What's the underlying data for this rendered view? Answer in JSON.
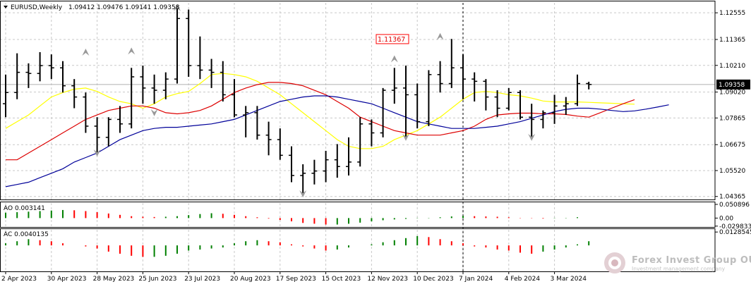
{
  "header": {
    "symbol": "EURUSD,Weekly",
    "ohlc": "1.09412 1.09476 1.09141 1.09358"
  },
  "colors": {
    "background": "#ffffff",
    "bar": "#000000",
    "ma_fast": "#ffff00",
    "ma_mid": "#dd0000",
    "ma_slow": "#000099",
    "osc_up": "#008000",
    "osc_down": "#ff0000",
    "grid": "#c8c8c8",
    "price_marker_bg": "#000000",
    "price_marker_fg": "#ffffff",
    "label_border": "#ff0000",
    "label_text": "#dd0000",
    "arrow": "#999999"
  },
  "watermark": {
    "company": "Forex Invest Group OU",
    "tagline": "Investment management company"
  },
  "chart_data": [
    {
      "type": "bar",
      "name": "price",
      "timeframe": "Weekly",
      "ylim": [
        1.0423,
        1.13
      ],
      "yticks": [
        "1.12555",
        "1.11365",
        "1.10210",
        "1.09020",
        "1.07865",
        "1.06675",
        "1.05520",
        "1.04365"
      ],
      "ytick_values": [
        1.12555,
        1.11365,
        1.1021,
        1.0902,
        1.07865,
        1.06675,
        1.0552,
        1.04365
      ],
      "current_price": "1.09358",
      "current_value": 1.09358,
      "annotation": {
        "text": "1.11367",
        "bar_index": 35,
        "value": 1.11367
      },
      "fractal_arrows": [
        {
          "bar_index": 7,
          "direction": "up",
          "value": 1.108
        },
        {
          "bar_index": 8,
          "direction": "down",
          "value": 1.063
        },
        {
          "bar_index": 11,
          "direction": "up",
          "value": 1.1085
        },
        {
          "bar_index": 13,
          "direction": "down",
          "value": 1.081
        },
        {
          "bar_index": 15,
          "direction": "up",
          "value": 1.1279
        },
        {
          "bar_index": 26,
          "direction": "down",
          "value": 1.0448
        },
        {
          "bar_index": 34,
          "direction": "up",
          "value": 1.105
        },
        {
          "bar_index": 35,
          "direction": "down",
          "value": 1.07
        },
        {
          "bar_index": 38,
          "direction": "up",
          "value": 1.115
        },
        {
          "bar_index": 46,
          "direction": "down",
          "value": 1.07
        }
      ],
      "x_labels": [
        {
          "text": "2 Apr 2023",
          "bar_index": 0
        },
        {
          "text": "30 Apr 2023",
          "bar_index": 4
        },
        {
          "text": "28 May 2023",
          "bar_index": 8
        },
        {
          "text": "25 Jun 2023",
          "bar_index": 12
        },
        {
          "text": "23 Jul 2023",
          "bar_index": 16
        },
        {
          "text": "20 Aug 2023",
          "bar_index": 20
        },
        {
          "text": "17 Sep 2023",
          "bar_index": 24
        },
        {
          "text": "15 Oct 2023",
          "bar_index": 28
        },
        {
          "text": "12 Nov 2023",
          "bar_index": 32
        },
        {
          "text": "10 Dec 2023",
          "bar_index": 36
        },
        {
          "text": "7 Jan 2024",
          "bar_index": 40
        },
        {
          "text": "4 Feb 2024",
          "bar_index": 44
        },
        {
          "text": "3 Mar 2024",
          "bar_index": 48
        }
      ],
      "vertical_marker_bar_index": 40,
      "ohlc": [
        [
          1.085,
          1.098,
          1.079,
          1.09
        ],
        [
          1.09,
          1.1075,
          1.087,
          1.099
        ],
        [
          1.099,
          1.103,
          1.092,
          1.0985
        ],
        [
          1.0985,
          1.108,
          1.095,
          1.102
        ],
        [
          1.102,
          1.107,
          1.096,
          1.101
        ],
        [
          1.101,
          1.104,
          1.09,
          1.093
        ],
        [
          1.093,
          1.096,
          1.083,
          1.088
        ],
        [
          1.088,
          1.09,
          1.072,
          1.075
        ],
        [
          1.075,
          1.079,
          1.063,
          1.07
        ],
        [
          1.07,
          1.079,
          1.066,
          1.078
        ],
        [
          1.078,
          1.084,
          1.072,
          1.076
        ],
        [
          1.076,
          1.101,
          1.074,
          1.097
        ],
        [
          1.097,
          1.102,
          1.085,
          1.092
        ],
        [
          1.092,
          1.098,
          1.085,
          1.091
        ],
        [
          1.091,
          1.099,
          1.087,
          1.096
        ],
        [
          1.096,
          1.1275,
          1.094,
          1.123
        ],
        [
          1.123,
          1.127,
          1.097,
          1.102
        ],
        [
          1.102,
          1.115,
          1.096,
          1.1
        ],
        [
          1.1,
          1.105,
          1.092,
          1.099
        ],
        [
          1.099,
          1.104,
          1.086,
          1.089
        ],
        [
          1.089,
          1.096,
          1.079,
          1.08
        ],
        [
          1.08,
          1.084,
          1.07,
          1.081
        ],
        [
          1.081,
          1.084,
          1.069,
          1.071
        ],
        [
          1.071,
          1.077,
          1.062,
          1.069
        ],
        [
          1.069,
          1.074,
          1.06,
          1.062
        ],
        [
          1.062,
          1.066,
          1.05,
          1.053
        ],
        [
          1.053,
          1.058,
          1.0448,
          1.054
        ],
        [
          1.054,
          1.06,
          1.049,
          1.055
        ],
        [
          1.055,
          1.064,
          1.05,
          1.06
        ],
        [
          1.06,
          1.067,
          1.052,
          1.057
        ],
        [
          1.057,
          1.07,
          1.053,
          1.059
        ],
        [
          1.059,
          1.079,
          1.057,
          1.076
        ],
        [
          1.076,
          1.078,
          1.066,
          1.072
        ],
        [
          1.072,
          1.092,
          1.07,
          1.091
        ],
        [
          1.091,
          1.101,
          1.085,
          1.092
        ],
        [
          1.092,
          1.102,
          1.07,
          1.089
        ],
        [
          1.089,
          1.094,
          1.074,
          1.077
        ],
        [
          1.077,
          1.1,
          1.075,
          1.098
        ],
        [
          1.098,
          1.104,
          1.09,
          1.094
        ],
        [
          1.094,
          1.1139,
          1.092,
          1.101
        ],
        [
          1.101,
          1.107,
          1.087,
          1.096
        ],
        [
          1.096,
          1.099,
          1.086,
          1.095
        ],
        [
          1.095,
          1.096,
          1.082,
          1.088
        ],
        [
          1.088,
          1.091,
          1.079,
          1.083
        ],
        [
          1.083,
          1.092,
          1.082,
          1.09
        ],
        [
          1.09,
          1.091,
          1.078,
          1.079
        ],
        [
          1.079,
          1.085,
          1.07,
          1.078
        ],
        [
          1.078,
          1.082,
          1.074,
          1.081
        ],
        [
          1.081,
          1.089,
          1.076,
          1.084
        ],
        [
          1.084,
          1.088,
          1.08,
          1.085
        ],
        [
          1.085,
          1.098,
          1.084,
          1.094
        ],
        [
          1.094,
          1.0948,
          1.0914,
          1.0936
        ]
      ],
      "series": [
        {
          "color": "#ffff00",
          "start_index": 0,
          "values": [
            1.074,
            1.077,
            1.08,
            1.084,
            1.088,
            1.09,
            1.0915,
            1.092,
            1.0905,
            1.088,
            1.086,
            1.085,
            1.083,
            1.085,
            1.088,
            1.0895,
            1.0905,
            1.094,
            1.098,
            1.0985,
            1.098,
            1.097,
            1.095,
            1.092,
            1.089,
            1.085,
            1.081,
            1.077,
            1.073,
            1.069,
            1.066,
            1.065,
            1.065,
            1.066,
            1.069,
            1.071,
            1.073,
            1.076,
            1.079,
            1.083,
            1.087,
            1.09,
            1.0905,
            1.09,
            1.089,
            1.0885,
            1.0875,
            1.0862,
            1.0858,
            1.0858,
            1.0858,
            1.0856,
            1.0854,
            1.0852,
            1.085,
            1.0848
          ]
        },
        {
          "color": "#dd0000",
          "start_index": 0,
          "values": [
            1.06,
            1.06,
            1.063,
            1.066,
            1.069,
            1.072,
            1.075,
            1.078,
            1.08,
            1.082,
            1.083,
            1.084,
            1.084,
            1.083,
            1.081,
            1.0805,
            1.081,
            1.082,
            1.084,
            1.087,
            1.09,
            1.092,
            1.0935,
            1.0945,
            1.0945,
            1.094,
            1.093,
            1.091,
            1.089,
            1.086,
            1.083,
            1.079,
            1.077,
            1.075,
            1.073,
            1.072,
            1.071,
            1.071,
            1.071,
            1.072,
            1.073,
            1.075,
            1.078,
            1.08,
            1.0805,
            1.0808,
            1.0808,
            1.0805,
            1.0805,
            1.0802,
            1.0795,
            1.079,
            1.081,
            1.083,
            1.085,
            1.0868
          ]
        },
        {
          "color": "#000099",
          "start_index": 0,
          "values": [
            1.048,
            1.049,
            1.05,
            1.052,
            1.054,
            1.056,
            1.059,
            1.061,
            1.063,
            1.066,
            1.069,
            1.071,
            1.073,
            1.074,
            1.0745,
            1.0745,
            1.075,
            1.0755,
            1.076,
            1.077,
            1.078,
            1.08,
            1.082,
            1.084,
            1.086,
            1.087,
            1.088,
            1.0885,
            1.0885,
            1.088,
            1.087,
            1.086,
            1.085,
            1.083,
            1.081,
            1.079,
            1.077,
            1.076,
            1.075,
            1.074,
            1.074,
            1.074,
            1.0745,
            1.075,
            1.076,
            1.077,
            1.0785,
            1.08,
            1.0815,
            1.0825,
            1.083,
            1.083,
            1.0826,
            1.082,
            1.0815,
            1.0818,
            1.0826,
            1.0835,
            1.0845
          ]
        }
      ]
    },
    {
      "type": "bar",
      "name": "AO",
      "label": "AO 0.003141",
      "ylim": [
        -0.033,
        0.056
      ],
      "yticks": [
        "0.050896",
        "0.00",
        "-0.029833"
      ],
      "ytick_values": [
        0.050896,
        0.0,
        -0.029833
      ],
      "values": [
        0.02,
        0.022,
        0.024,
        0.026,
        0.028,
        0.03,
        0.029,
        0.026,
        0.022,
        0.017,
        0.012,
        0.007,
        0.005,
        0.004,
        0.005,
        0.007,
        0.011,
        0.015,
        0.018,
        0.016,
        0.012,
        0.007,
        0.003,
        -0.002,
        -0.007,
        -0.012,
        -0.018,
        -0.021,
        -0.024,
        -0.024,
        -0.021,
        -0.017,
        -0.012,
        -0.008,
        -0.005,
        -0.003,
        -0.001,
        0.001,
        0.003,
        0.006,
        0.008,
        0.007,
        0.006,
        0.005,
        0.003,
        0.001,
        -0.001,
        -0.002,
        -0.001,
        0.001,
        0.003141
      ]
    },
    {
      "type": "bar",
      "name": "AC",
      "label": "AC 0.0040135",
      "ylim": [
        -0.025,
        0.015
      ],
      "yticks": [
        "0.0128545"
      ],
      "ytick_values": [
        0.0128545
      ],
      "values": [
        0.002,
        0.004,
        0.006,
        0.005,
        0.004,
        0.002,
        0.0,
        -0.001,
        -0.003,
        -0.006,
        -0.008,
        -0.01,
        -0.011,
        -0.011,
        -0.01,
        -0.008,
        -0.005,
        -0.004,
        -0.003,
        -0.002,
        0.002,
        0.004,
        0.005,
        0.004,
        0.003,
        0.001,
        -0.001,
        -0.003,
        -0.005,
        -0.004,
        -0.002,
        0.0,
        0.001,
        0.003,
        0.005,
        0.007,
        0.009,
        0.008,
        0.006,
        0.004,
        0.002,
        -0.001,
        -0.002,
        -0.004,
        -0.005,
        -0.007,
        -0.008,
        -0.006,
        -0.004,
        -0.002,
        0.001,
        0.004
      ]
    }
  ]
}
